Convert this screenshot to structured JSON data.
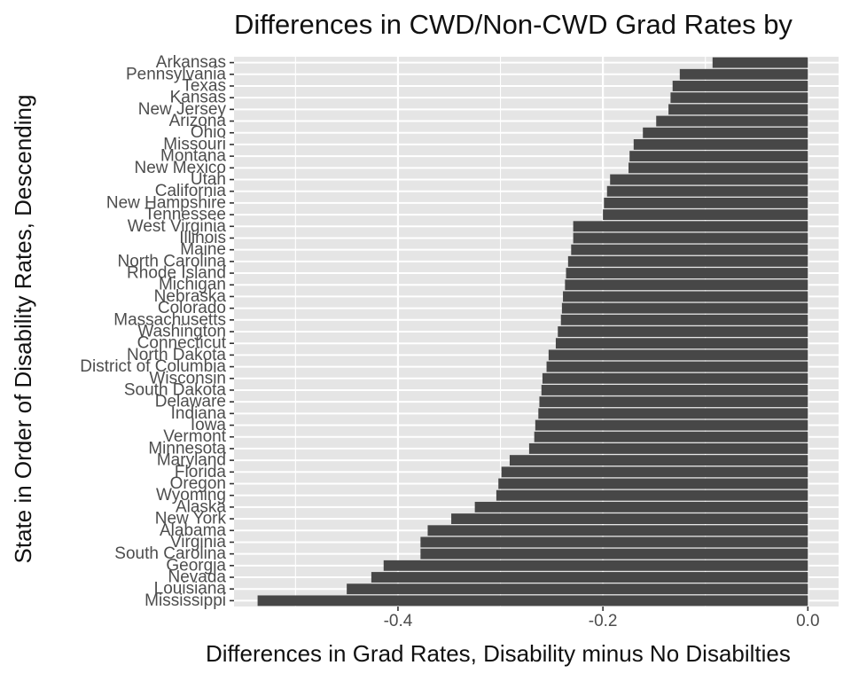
{
  "chart_data": {
    "type": "bar",
    "orientation": "horizontal",
    "title": "Differences in CWD/Non-CWD Grad Rates by",
    "xlabel": "Differences in Grad Rates, Disability minus No Disabilties",
    "ylabel": "State in Order of Disability Rates, Descending",
    "xlim": [
      -0.56,
      0.03
    ],
    "x_ticks": [
      {
        "value": -0.4,
        "label": "-0.4"
      },
      {
        "value": -0.2,
        "label": "-0.2"
      },
      {
        "value": 0.0,
        "label": "0.0"
      }
    ],
    "grid": true,
    "background": "#e5e5e5",
    "bar_color": "#474747",
    "categories": [
      "Arkansas",
      "Pennsylvania",
      "Texas",
      "Kansas",
      "New Jersey",
      "Arizona",
      "Ohio",
      "Missouri",
      "Montana",
      "New Mexico",
      "Utah",
      "California",
      "New Hampshire",
      "Tennessee",
      "West Virginia",
      "Illinois",
      "Maine",
      "North Carolina",
      "Rhode Island",
      "Michigan",
      "Nebraska",
      "Colorado",
      "Massachusetts",
      "Washington",
      "Connecticut",
      "North Dakota",
      "District of Columbia",
      "Wisconsin",
      "South Dakota",
      "Delaware",
      "Indiana",
      "Iowa",
      "Vermont",
      "Minnesota",
      "Maryland",
      "Florida",
      "Oregon",
      "Wyoming",
      "Alaska",
      "New York",
      "Alabama",
      "Virginia",
      "South Carolina",
      "Georgia",
      "Nevada",
      "Louisiana",
      "Mississippi"
    ],
    "values": [
      -0.093,
      -0.125,
      -0.132,
      -0.134,
      -0.136,
      -0.148,
      -0.161,
      -0.17,
      -0.174,
      -0.175,
      -0.193,
      -0.196,
      -0.199,
      -0.2,
      -0.229,
      -0.229,
      -0.231,
      -0.234,
      -0.236,
      -0.237,
      -0.239,
      -0.24,
      -0.241,
      -0.244,
      -0.246,
      -0.253,
      -0.255,
      -0.259,
      -0.26,
      -0.262,
      -0.263,
      -0.266,
      -0.267,
      -0.272,
      -0.291,
      -0.299,
      -0.302,
      -0.304,
      -0.325,
      -0.348,
      -0.371,
      -0.378,
      -0.378,
      -0.414,
      -0.426,
      -0.45,
      -0.537
    ]
  }
}
